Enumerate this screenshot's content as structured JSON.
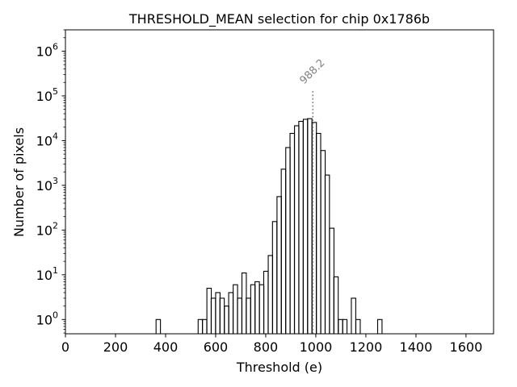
{
  "chart_data": {
    "type": "histogram",
    "title": "THRESHOLD_MEAN selection for chip 0x1786b",
    "xlabel": "Threshold (e)",
    "ylabel": "Number of pixels",
    "xlim": [
      0,
      1710
    ],
    "ylim": [
      0.48,
      3000000
    ],
    "yscale": "log",
    "x_ticks": [
      0,
      200,
      400,
      600,
      800,
      1000,
      1200,
      1400,
      1600
    ],
    "x_tick_labels": [
      "0",
      "200",
      "400",
      "600",
      "800",
      "1000",
      "1200",
      "1400",
      "1600"
    ],
    "y_ticks": [
      1,
      10,
      100,
      1000,
      10000,
      100000,
      1000000
    ],
    "y_tick_labels": [
      {
        "base": "10",
        "exp": "0"
      },
      {
        "base": "10",
        "exp": "1"
      },
      {
        "base": "10",
        "exp": "2"
      },
      {
        "base": "10",
        "exp": "3"
      },
      {
        "base": "10",
        "exp": "4"
      },
      {
        "base": "10",
        "exp": "5"
      },
      {
        "base": "10",
        "exp": "6"
      }
    ],
    "bin_width": 17.5,
    "bins": [
      {
        "x0": 362,
        "count": 1
      },
      {
        "x0": 530,
        "count": 1
      },
      {
        "x0": 547,
        "count": 1
      },
      {
        "x0": 565,
        "count": 5
      },
      {
        "x0": 582,
        "count": 3
      },
      {
        "x0": 600,
        "count": 4
      },
      {
        "x0": 617,
        "count": 3
      },
      {
        "x0": 635,
        "count": 2
      },
      {
        "x0": 652,
        "count": 4
      },
      {
        "x0": 670,
        "count": 6
      },
      {
        "x0": 687,
        "count": 3
      },
      {
        "x0": 705,
        "count": 11
      },
      {
        "x0": 722,
        "count": 3
      },
      {
        "x0": 740,
        "count": 6
      },
      {
        "x0": 757,
        "count": 7
      },
      {
        "x0": 775,
        "count": 6
      },
      {
        "x0": 792,
        "count": 12
      },
      {
        "x0": 810,
        "count": 27
      },
      {
        "x0": 827,
        "count": 155
      },
      {
        "x0": 845,
        "count": 560
      },
      {
        "x0": 862,
        "count": 2300
      },
      {
        "x0": 880,
        "count": 7000
      },
      {
        "x0": 897,
        "count": 14500
      },
      {
        "x0": 915,
        "count": 21500
      },
      {
        "x0": 932,
        "count": 27000
      },
      {
        "x0": 950,
        "count": 30000
      },
      {
        "x0": 967,
        "count": 31000
      },
      {
        "x0": 985,
        "count": 25500
      },
      {
        "x0": 1002,
        "count": 14500
      },
      {
        "x0": 1020,
        "count": 6000
      },
      {
        "x0": 1037,
        "count": 1700
      },
      {
        "x0": 1055,
        "count": 110
      },
      {
        "x0": 1072,
        "count": 9
      },
      {
        "x0": 1090,
        "count": 1
      },
      {
        "x0": 1107,
        "count": 1
      },
      {
        "x0": 1125,
        "count": 0
      },
      {
        "x0": 1142,
        "count": 3
      },
      {
        "x0": 1160,
        "count": 1
      },
      {
        "x0": 1247,
        "count": 1
      }
    ],
    "annotation": {
      "x": 988.2,
      "label": "988.2",
      "line_top": 140000,
      "line_style": "dotted",
      "color": "#808080"
    },
    "grid": false,
    "line_color": "#000000"
  }
}
